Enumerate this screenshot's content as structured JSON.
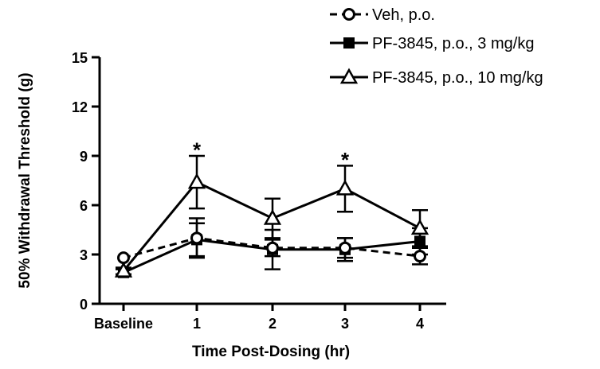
{
  "chart_data": {
    "type": "line",
    "xlabel": "Time Post-Dosing (hr)",
    "ylabel": "50% Withdrawal Threshold (g)",
    "categories": [
      "Baseline",
      "1",
      "2",
      "3",
      "4"
    ],
    "ylim": [
      0,
      15
    ],
    "yticks": [
      "0",
      "3",
      "6",
      "9",
      "12",
      "15"
    ],
    "grid": false,
    "legend_position": "top-right",
    "series": [
      {
        "name": "Veh, p.o.",
        "marker": "open-circle",
        "dashed": true,
        "values": [
          2.8,
          4.0,
          3.4,
          3.4,
          2.9
        ],
        "errors": [
          0.0,
          1.2,
          0.5,
          0.6,
          0.5
        ]
      },
      {
        "name": "PF-3845, p.o., 3 mg/kg",
        "marker": "filled-square",
        "dashed": false,
        "values": [
          1.9,
          3.9,
          3.3,
          3.3,
          3.8
        ],
        "errors": [
          0.2,
          1.0,
          1.2,
          0.7,
          0.8
        ]
      },
      {
        "name": "PF-3845, p.o., 10 mg/kg",
        "marker": "open-triangle",
        "dashed": false,
        "values": [
          2.0,
          7.4,
          5.2,
          7.0,
          4.6
        ],
        "errors": [
          0.2,
          1.6,
          1.2,
          1.4,
          1.1
        ]
      }
    ],
    "annotations": [
      {
        "text": "*",
        "category": "1",
        "y": 9.6
      },
      {
        "text": "*",
        "category": "3",
        "y": 9.0
      }
    ]
  }
}
